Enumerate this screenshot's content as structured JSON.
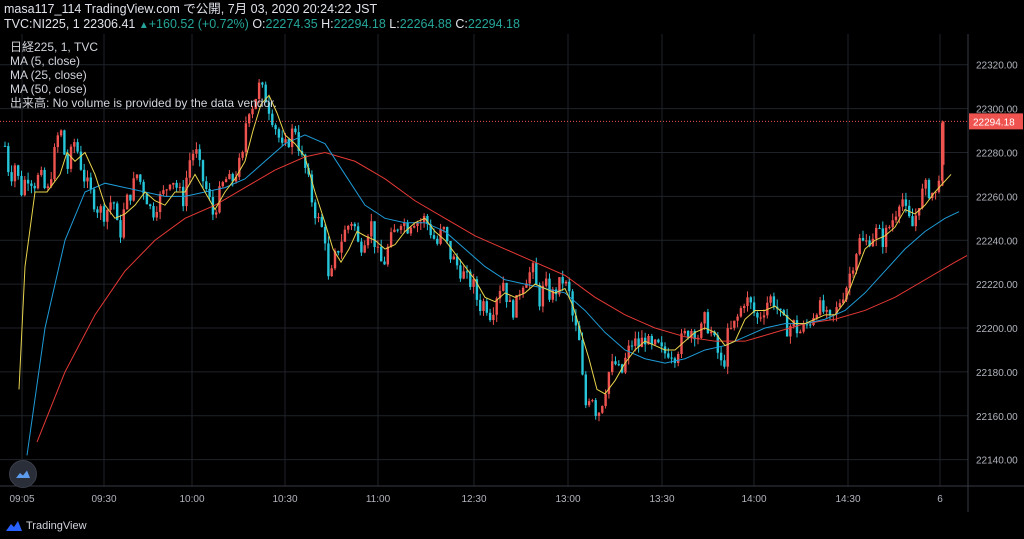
{
  "header": {
    "line1": "masa117_114 TradingView.com で公開, 7月 03, 2020 20:24:22 JST",
    "symbol": "TVC:NI225, 1",
    "last": "22306.41",
    "change": "+160.52 (+0.72%)",
    "o_label": "O:",
    "o_val": "22274.35",
    "h_label": "H:",
    "h_val": "22294.18",
    "l_label": "L:",
    "l_val": "22264.88",
    "c_label": "C:",
    "c_val": "22294.18"
  },
  "legend": {
    "title": "日経225, 1, TVC",
    "ma5": "MA (5, close)",
    "ma25": "MA (25, close)",
    "ma50": "MA (50, close)",
    "volume": "出来高: No volume is provided by the data vendor."
  },
  "footer": {
    "brand": "TradingView"
  },
  "colors": {
    "up": "#ef5350",
    "down": "#26c6da",
    "ma5": "#e8d44d",
    "ma25": "#1e9bd7",
    "ma50": "#e53935",
    "grid": "#1f2229",
    "axis_text": "#b2b5be",
    "price_tag": "#ef5350"
  },
  "chart_data": {
    "type": "candlestick",
    "x_ticks": [
      "09:05",
      "09:30",
      "10:00",
      "10:30",
      "11:00",
      "12:30",
      "13:00",
      "13:30",
      "14:00",
      "14:30",
      "6"
    ],
    "y_ticks": [
      22320,
      22300,
      22280,
      22260,
      22240,
      22220,
      22200,
      22180,
      22160,
      22140
    ],
    "ylim": [
      22128,
      22334
    ],
    "last_price": 22294.18,
    "last_price_label": "22294.18",
    "series": [
      {
        "name": "MA (5, close)",
        "color": "#e8d44d"
      },
      {
        "name": "MA (25, close)",
        "color": "#1e9bd7"
      },
      {
        "name": "MA (50, close)",
        "color": "#e53935"
      }
    ],
    "close_path": [
      [
        0,
        22283
      ],
      [
        5,
        22268
      ],
      [
        10,
        22275
      ],
      [
        16,
        22262
      ],
      [
        22,
        22270
      ],
      [
        30,
        22266
      ],
      [
        35,
        22270
      ],
      [
        42,
        22260
      ],
      [
        48,
        22276
      ],
      [
        55,
        22292
      ],
      [
        62,
        22272
      ],
      [
        70,
        22286
      ],
      [
        78,
        22270
      ],
      [
        85,
        22262
      ],
      [
        92,
        22255
      ],
      [
        100,
        22252
      ],
      [
        108,
        22260
      ],
      [
        114,
        22240
      ],
      [
        120,
        22256
      ],
      [
        126,
        22262
      ],
      [
        132,
        22270
      ],
      [
        140,
        22262
      ],
      [
        147,
        22252
      ],
      [
        153,
        22258
      ],
      [
        160,
        22262
      ],
      [
        166,
        22270
      ],
      [
        172,
        22264
      ],
      [
        178,
        22258
      ],
      [
        184,
        22276
      ],
      [
        190,
        22282
      ],
      [
        196,
        22270
      ],
      [
        202,
        22262
      ],
      [
        208,
        22252
      ],
      [
        214,
        22260
      ],
      [
        220,
        22268
      ],
      [
        226,
        22266
      ],
      [
        232,
        22272
      ],
      [
        238,
        22278
      ],
      [
        242,
        22300
      ],
      [
        248,
        22302
      ],
      [
        254,
        22310
      ],
      [
        260,
        22306
      ],
      [
        266,
        22298
      ],
      [
        272,
        22290
      ],
      [
        278,
        22280
      ],
      [
        284,
        22286
      ],
      [
        290,
        22292
      ],
      [
        296,
        22278
      ],
      [
        302,
        22270
      ],
      [
        308,
        22256
      ],
      [
        314,
        22248
      ],
      [
        320,
        22242
      ],
      [
        324,
        22218
      ],
      [
        330,
        22232
      ],
      [
        336,
        22240
      ],
      [
        342,
        22246
      ],
      [
        348,
        22250
      ],
      [
        354,
        22236
      ],
      [
        360,
        22242
      ],
      [
        366,
        22248
      ],
      [
        372,
        22234
      ],
      [
        378,
        22228
      ],
      [
        384,
        22238
      ],
      [
        390,
        22244
      ],
      [
        396,
        22250
      ],
      [
        402,
        22246
      ],
      [
        408,
        22250
      ],
      [
        414,
        22248
      ],
      [
        420,
        22250
      ],
      [
        426,
        22244
      ],
      [
        432,
        22238
      ],
      [
        438,
        22246
      ],
      [
        444,
        22234
      ],
      [
        450,
        22230
      ],
      [
        456,
        22226
      ],
      [
        462,
        22222
      ],
      [
        468,
        22220
      ],
      [
        474,
        22210
      ],
      [
        480,
        22212
      ],
      [
        486,
        22206
      ],
      [
        492,
        22216
      ],
      [
        498,
        22222
      ],
      [
        504,
        22210
      ],
      [
        510,
        22208
      ],
      [
        516,
        22220
      ],
      [
        522,
        22224
      ],
      [
        528,
        22226
      ],
      [
        534,
        22212
      ],
      [
        540,
        22220
      ],
      [
        546,
        22214
      ],
      [
        552,
        22218
      ],
      [
        558,
        22222
      ],
      [
        564,
        22216
      ],
      [
        568,
        22204
      ],
      [
        574,
        22194
      ],
      [
        580,
        22164
      ],
      [
        586,
        22172
      ],
      [
        592,
        22160
      ],
      [
        598,
        22168
      ],
      [
        604,
        22180
      ],
      [
        610,
        22184
      ],
      [
        616,
        22178
      ],
      [
        622,
        22188
      ],
      [
        628,
        22194
      ],
      [
        634,
        22192
      ],
      [
        640,
        22196
      ],
      [
        646,
        22190
      ],
      [
        652,
        22192
      ],
      [
        658,
        22188
      ],
      [
        664,
        22190
      ],
      [
        670,
        22188
      ],
      [
        676,
        22194
      ],
      [
        682,
        22198
      ],
      [
        688,
        22200
      ],
      [
        694,
        22196
      ],
      [
        700,
        22204
      ],
      [
        706,
        22198
      ],
      [
        712,
        22190
      ],
      [
        718,
        22180
      ],
      [
        722,
        22196
      ],
      [
        728,
        22200
      ],
      [
        734,
        22206
      ],
      [
        740,
        22214
      ],
      [
        746,
        22210
      ],
      [
        752,
        22204
      ],
      [
        758,
        22208
      ],
      [
        764,
        22214
      ],
      [
        770,
        22212
      ],
      [
        776,
        22204
      ],
      [
        782,
        22200
      ],
      [
        788,
        22202
      ],
      [
        794,
        22198
      ],
      [
        800,
        22200
      ],
      [
        806,
        22204
      ],
      [
        812,
        22210
      ],
      [
        818,
        22208
      ],
      [
        824,
        22202
      ],
      [
        830,
        22206
      ],
      [
        836,
        22214
      ],
      [
        842,
        22220
      ],
      [
        848,
        22230
      ],
      [
        854,
        22240
      ],
      [
        860,
        22238
      ],
      [
        866,
        22242
      ],
      [
        872,
        22244
      ],
      [
        878,
        22240
      ],
      [
        884,
        22246
      ],
      [
        890,
        22252
      ],
      [
        896,
        22262
      ],
      [
        902,
        22250
      ],
      [
        908,
        22246
      ],
      [
        914,
        22258
      ],
      [
        920,
        22264
      ],
      [
        926,
        22262
      ],
      [
        932,
        22260
      ],
      [
        938,
        22294
      ]
    ],
    "ma5_path": [
      [
        14,
        22172
      ],
      [
        20,
        22228
      ],
      [
        30,
        22262
      ],
      [
        42,
        22262
      ],
      [
        55,
        22270
      ],
      [
        62,
        22280
      ],
      [
        70,
        22276
      ],
      [
        80,
        22280
      ],
      [
        90,
        22270
      ],
      [
        100,
        22256
      ],
      [
        110,
        22250
      ],
      [
        120,
        22252
      ],
      [
        130,
        22256
      ],
      [
        140,
        22262
      ],
      [
        150,
        22258
      ],
      [
        160,
        22256
      ],
      [
        170,
        22262
      ],
      [
        180,
        22262
      ],
      [
        190,
        22270
      ],
      [
        200,
        22262
      ],
      [
        210,
        22254
      ],
      [
        220,
        22262
      ],
      [
        230,
        22268
      ],
      [
        240,
        22276
      ],
      [
        248,
        22290
      ],
      [
        256,
        22302
      ],
      [
        264,
        22306
      ],
      [
        272,
        22298
      ],
      [
        280,
        22288
      ],
      [
        290,
        22284
      ],
      [
        300,
        22278
      ],
      [
        310,
        22262
      ],
      [
        320,
        22248
      ],
      [
        328,
        22236
      ],
      [
        336,
        22230
      ],
      [
        344,
        22236
      ],
      [
        352,
        22244
      ],
      [
        360,
        22242
      ],
      [
        370,
        22240
      ],
      [
        380,
        22236
      ],
      [
        390,
        22238
      ],
      [
        400,
        22244
      ],
      [
        410,
        22248
      ],
      [
        420,
        22250
      ],
      [
        430,
        22244
      ],
      [
        440,
        22240
      ],
      [
        450,
        22234
      ],
      [
        460,
        22228
      ],
      [
        470,
        22222
      ],
      [
        480,
        22214
      ],
      [
        490,
        22212
      ],
      [
        500,
        22216
      ],
      [
        510,
        22214
      ],
      [
        520,
        22216
      ],
      [
        530,
        22220
      ],
      [
        540,
        22218
      ],
      [
        550,
        22216
      ],
      [
        560,
        22218
      ],
      [
        568,
        22210
      ],
      [
        576,
        22198
      ],
      [
        584,
        22186
      ],
      [
        592,
        22172
      ],
      [
        600,
        22170
      ],
      [
        610,
        22176
      ],
      [
        620,
        22184
      ],
      [
        630,
        22190
      ],
      [
        640,
        22194
      ],
      [
        650,
        22192
      ],
      [
        660,
        22190
      ],
      [
        670,
        22190
      ],
      [
        680,
        22194
      ],
      [
        690,
        22198
      ],
      [
        700,
        22200
      ],
      [
        710,
        22198
      ],
      [
        720,
        22192
      ],
      [
        730,
        22194
      ],
      [
        740,
        22204
      ],
      [
        750,
        22208
      ],
      [
        760,
        22208
      ],
      [
        770,
        22210
      ],
      [
        780,
        22206
      ],
      [
        790,
        22202
      ],
      [
        800,
        22202
      ],
      [
        810,
        22204
      ],
      [
        820,
        22206
      ],
      [
        830,
        22206
      ],
      [
        840,
        22212
      ],
      [
        850,
        22224
      ],
      [
        860,
        22236
      ],
      [
        870,
        22240
      ],
      [
        880,
        22242
      ],
      [
        890,
        22246
      ],
      [
        900,
        22254
      ],
      [
        910,
        22252
      ],
      [
        920,
        22256
      ],
      [
        930,
        22262
      ],
      [
        946,
        22270
      ]
    ],
    "ma25_path": [
      [
        22,
        22142
      ],
      [
        40,
        22200
      ],
      [
        60,
        22240
      ],
      [
        80,
        22262
      ],
      [
        100,
        22266
      ],
      [
        120,
        22264
      ],
      [
        140,
        22262
      ],
      [
        160,
        22260
      ],
      [
        180,
        22260
      ],
      [
        200,
        22262
      ],
      [
        220,
        22264
      ],
      [
        240,
        22268
      ],
      [
        260,
        22276
      ],
      [
        280,
        22284
      ],
      [
        300,
        22288
      ],
      [
        320,
        22284
      ],
      [
        340,
        22270
      ],
      [
        360,
        22256
      ],
      [
        380,
        22250
      ],
      [
        400,
        22248
      ],
      [
        420,
        22248
      ],
      [
        440,
        22244
      ],
      [
        460,
        22236
      ],
      [
        480,
        22228
      ],
      [
        500,
        22222
      ],
      [
        520,
        22220
      ],
      [
        540,
        22218
      ],
      [
        560,
        22216
      ],
      [
        580,
        22208
      ],
      [
        600,
        22198
      ],
      [
        620,
        22190
      ],
      [
        640,
        22186
      ],
      [
        660,
        22184
      ],
      [
        680,
        22186
      ],
      [
        700,
        22190
      ],
      [
        720,
        22192
      ],
      [
        740,
        22196
      ],
      [
        760,
        22200
      ],
      [
        780,
        22202
      ],
      [
        800,
        22202
      ],
      [
        820,
        22204
      ],
      [
        840,
        22208
      ],
      [
        860,
        22216
      ],
      [
        880,
        22226
      ],
      [
        900,
        22236
      ],
      [
        920,
        22244
      ],
      [
        940,
        22250
      ],
      [
        954,
        22253
      ]
    ],
    "ma50_path": [
      [
        32,
        22148
      ],
      [
        60,
        22180
      ],
      [
        90,
        22206
      ],
      [
        120,
        22226
      ],
      [
        150,
        22240
      ],
      [
        180,
        22250
      ],
      [
        210,
        22256
      ],
      [
        240,
        22264
      ],
      [
        270,
        22272
      ],
      [
        300,
        22278
      ],
      [
        320,
        22280
      ],
      [
        350,
        22276
      ],
      [
        380,
        22268
      ],
      [
        410,
        22258
      ],
      [
        440,
        22250
      ],
      [
        470,
        22242
      ],
      [
        500,
        22236
      ],
      [
        530,
        22230
      ],
      [
        560,
        22224
      ],
      [
        590,
        22214
      ],
      [
        620,
        22206
      ],
      [
        650,
        22200
      ],
      [
        680,
        22196
      ],
      [
        710,
        22194
      ],
      [
        740,
        22194
      ],
      [
        770,
        22198
      ],
      [
        800,
        22202
      ],
      [
        830,
        22204
      ],
      [
        860,
        22208
      ],
      [
        890,
        22214
      ],
      [
        920,
        22222
      ],
      [
        950,
        22230
      ],
      [
        962,
        22233
      ]
    ]
  }
}
